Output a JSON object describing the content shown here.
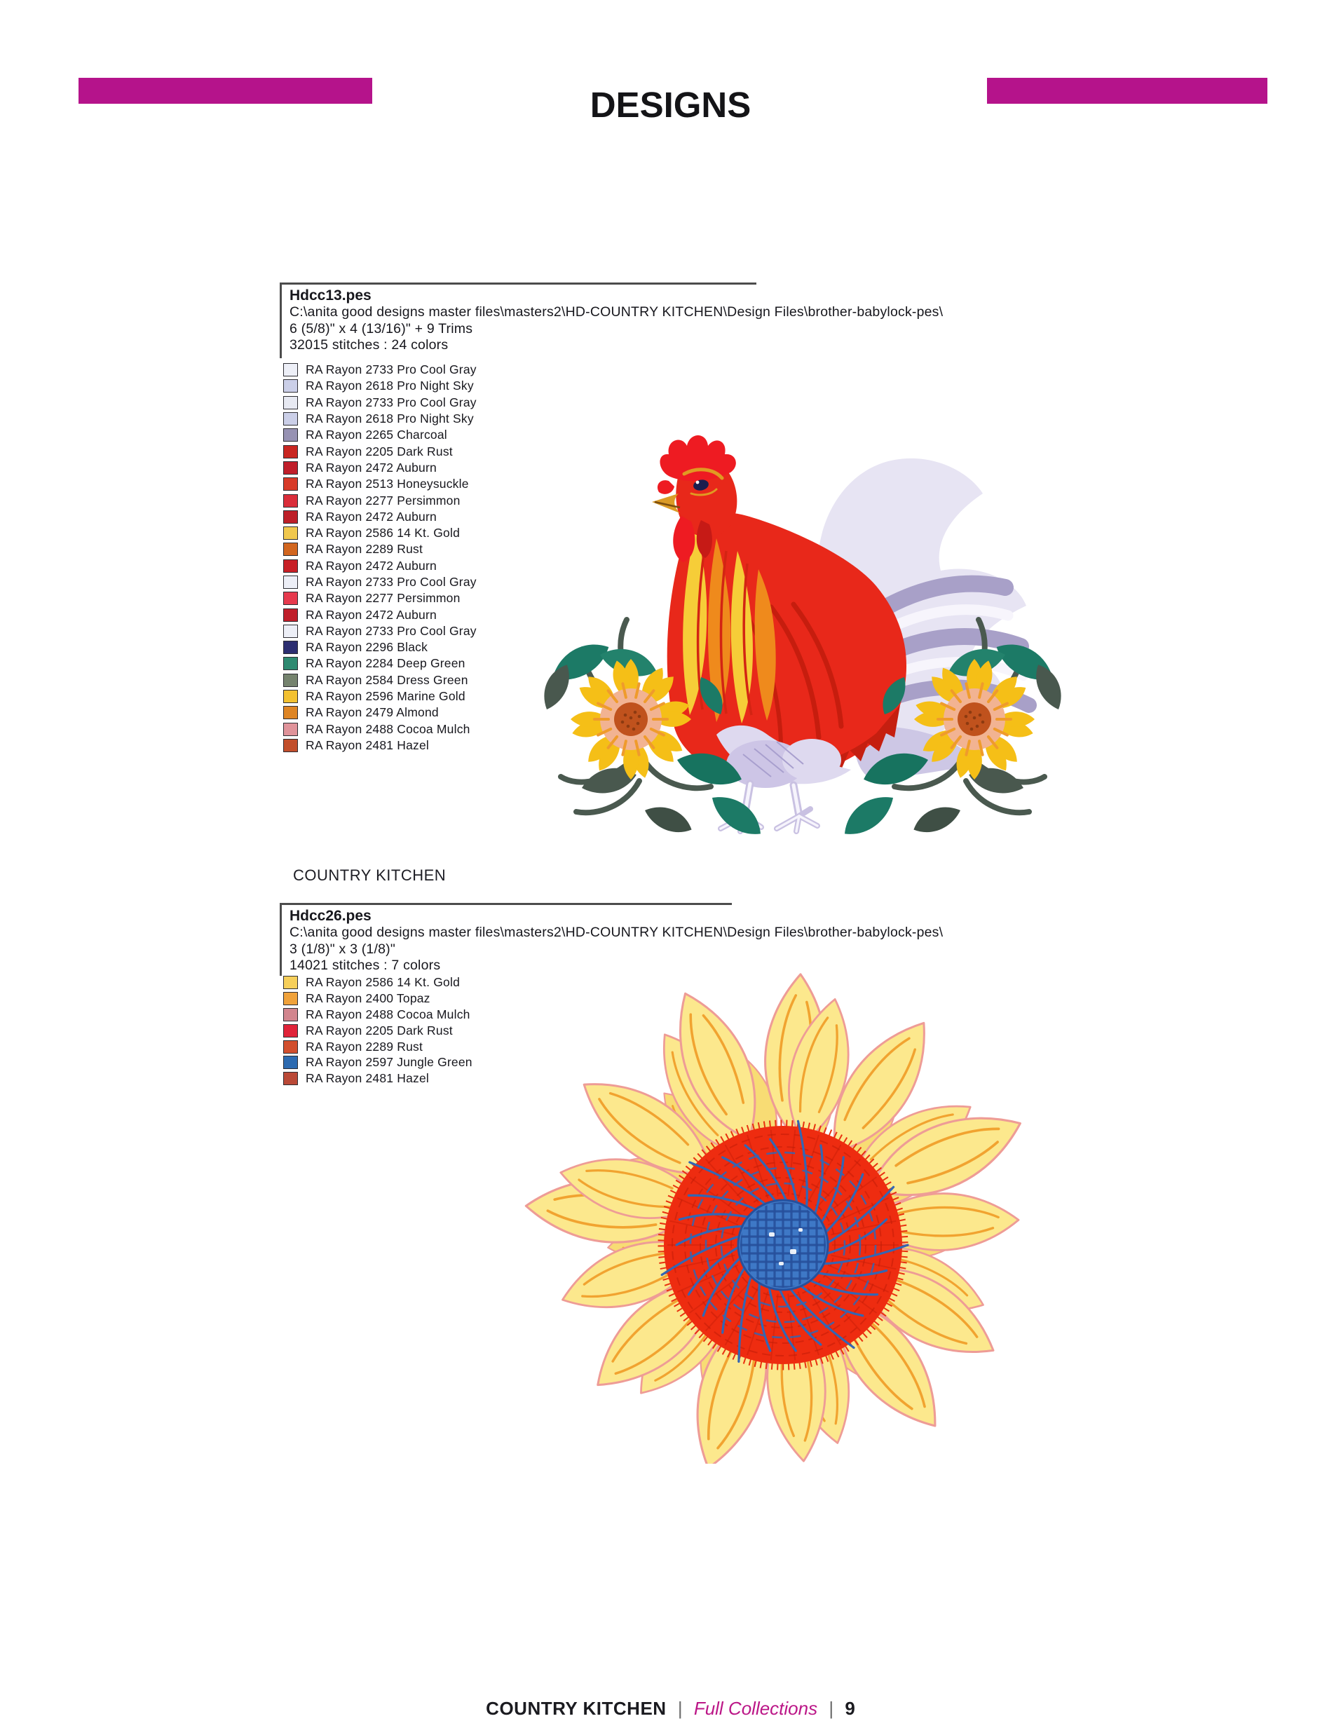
{
  "header": {
    "title": "DESIGNS"
  },
  "accent_color": "#b5138b",
  "collection_label": "COUNTRY KITCHEN",
  "designs": [
    {
      "filename": "Hdcc13.pes",
      "path": "C:\\anita good designs master files\\masters2\\HD-COUNTRY KITCHEN\\Design Files\\brother-babylock-pes\\",
      "size": "6 (5/8)\" x 4 (13/16)\" + 9 Trims",
      "stitches": "32015 stitches : 24 colors",
      "illustration": "rooster-with-sunflowers",
      "threads": [
        {
          "label": "RA Rayon 2733 Pro Cool Gray",
          "color": "#edeff7"
        },
        {
          "label": "RA Rayon 2618 Pro Night Sky",
          "color": "#cbcfe8"
        },
        {
          "label": "RA Rayon 2733 Pro Cool Gray",
          "color": "#e7e9f2"
        },
        {
          "label": "RA Rayon 2618 Pro Night Sky",
          "color": "#cbcfe8"
        },
        {
          "label": "RA Rayon 2265 Charcoal",
          "color": "#9792b3"
        },
        {
          "label": "RA Rayon 2205 Dark Rust",
          "color": "#c92621"
        },
        {
          "label": "RA Rayon 2472 Auburn",
          "color": "#c01e2a"
        },
        {
          "label": "RA Rayon 2513 Honeysuckle",
          "color": "#d83a28"
        },
        {
          "label": "RA Rayon 2277 Persimmon",
          "color": "#da2d3a"
        },
        {
          "label": "RA Rayon 2472 Auburn",
          "color": "#bd1f28"
        },
        {
          "label": "RA Rayon 2586 14 Kt. Gold",
          "color": "#f1c84e"
        },
        {
          "label": "RA Rayon 2289 Rust",
          "color": "#d2661f"
        },
        {
          "label": "RA Rayon 2472 Auburn",
          "color": "#c81f26"
        },
        {
          "label": "RA Rayon 2733 Pro Cool Gray",
          "color": "#edeff7"
        },
        {
          "label": "RA Rayon 2277 Persimmon",
          "color": "#e63a4e"
        },
        {
          "label": "RA Rayon 2472 Auburn",
          "color": "#c01e2a"
        },
        {
          "label": "RA Rayon 2733 Pro Cool Gray",
          "color": "#edeff7"
        },
        {
          "label": "RA Rayon 2296 Black",
          "color": "#2c2e71"
        },
        {
          "label": "RA Rayon 2284 Deep Green",
          "color": "#2e8a71"
        },
        {
          "label": "RA Rayon 2584 Dress Green",
          "color": "#75836e"
        },
        {
          "label": "RA Rayon 2596 Marine Gold",
          "color": "#f3c131"
        },
        {
          "label": "RA Rayon 2479 Almond",
          "color": "#de8525"
        },
        {
          "label": "RA Rayon 2488 Cocoa Mulch",
          "color": "#e0939a"
        },
        {
          "label": "RA Rayon 2481 Hazel",
          "color": "#c24e2b"
        }
      ]
    },
    {
      "filename": "Hdcc26.pes",
      "path": "C:\\anita good designs master files\\masters2\\HD-COUNTRY KITCHEN\\Design Files\\brother-babylock-pes\\",
      "size": "3 (1/8)\" x 3 (1/8)\"",
      "stitches": "14021 stitches : 7 colors",
      "illustration": "sunflower",
      "threads": [
        {
          "label": "RA Rayon 2586 14 Kt. Gold",
          "color": "#f6cf5a"
        },
        {
          "label": "RA Rayon 2400 Topaz",
          "color": "#f0a23b"
        },
        {
          "label": "RA Rayon 2488 Cocoa Mulch",
          "color": "#d2858e"
        },
        {
          "label": "RA Rayon 2205 Dark Rust",
          "color": "#e02339"
        },
        {
          "label": "RA Rayon 2289 Rust",
          "color": "#d24f2e"
        },
        {
          "label": "RA Rayon 2597 Jungle Green",
          "color": "#2d6bb1"
        },
        {
          "label": "RA Rayon 2481 Hazel",
          "color": "#ba4937"
        }
      ]
    }
  ],
  "footer": {
    "collection": "COUNTRY KITCHEN",
    "separator": "|",
    "section": "Full Collections",
    "page_number": "9"
  }
}
